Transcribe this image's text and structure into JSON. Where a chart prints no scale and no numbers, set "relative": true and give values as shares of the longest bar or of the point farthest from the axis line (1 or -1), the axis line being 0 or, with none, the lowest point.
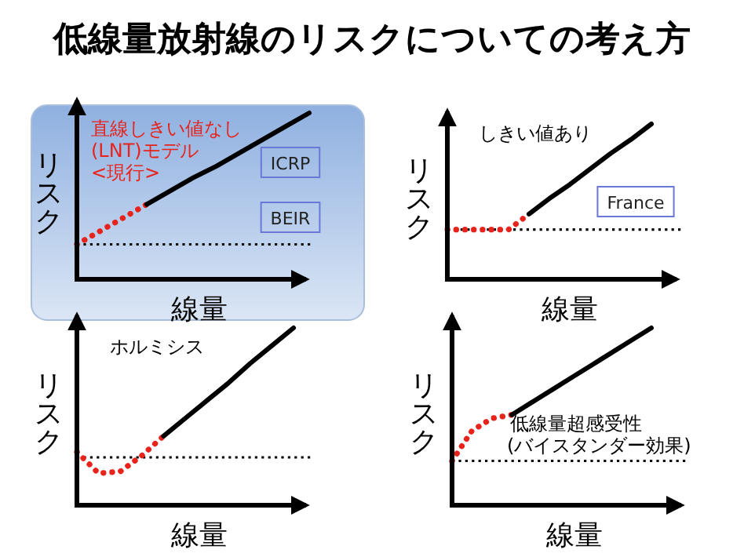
{
  "chart_data": [
    {
      "type": "line",
      "relative": true,
      "title": "低線量放射線のリスクについての考え方",
      "xlabel": "線量",
      "ylabel": "リスク",
      "categories": [
        null,
        null,
        null,
        null,
        null,
        null,
        null,
        null,
        null,
        null,
        null
      ],
      "series": [
        {
          "color": "#e8231c",
          "line_style": "dotted",
          "values": [
            0.21,
            0.29,
            0.37,
            0.45,
            null,
            null,
            null,
            null,
            null,
            null,
            null
          ]
        },
        {
          "color": "#000000",
          "line_style": "solid",
          "values": [
            null,
            null,
            null,
            0.45,
            0.53,
            0.61,
            0.68,
            0.76,
            0.84,
            0.92,
            1
          ]
        }
      ],
      "ref_lines": [
        {
          "axis": "y",
          "value": 0.21,
          "color": "#000000",
          "line_style": "dotted"
        }
      ],
      "annotations": [
        "直線しきい値なし",
        "(LNT)モデル",
        "<現行>",
        "ICRP",
        "BEIR"
      ]
    },
    {
      "type": "line",
      "relative": true,
      "xlabel": "線量",
      "ylabel": "リスク",
      "categories": [
        null,
        null,
        null,
        null,
        null,
        null,
        null,
        null,
        null,
        null,
        null
      ],
      "series": [
        {
          "color": "#e8231c",
          "line_style": "dotted",
          "values": [
            0.32,
            0.32,
            0.32,
            0.32,
            0.42,
            null,
            null,
            null,
            null,
            null,
            null
          ]
        },
        {
          "color": "#000000",
          "line_style": "solid",
          "values": [
            null,
            null,
            null,
            null,
            0.42,
            0.52,
            0.61,
            0.71,
            0.81,
            0.9,
            1
          ]
        }
      ],
      "ref_lines": [
        {
          "axis": "y",
          "value": 0.32,
          "color": "#000000",
          "line_style": "dotted"
        }
      ],
      "annotations": [
        "しきい値あり",
        "France"
      ]
    },
    {
      "type": "line",
      "relative": true,
      "xlabel": "線量",
      "ylabel": "リスク",
      "categories": [
        null,
        null,
        null,
        null,
        null,
        null,
        null,
        null,
        null,
        null,
        null
      ],
      "series": [
        {
          "color": "#e8231c",
          "line_style": "dotted",
          "values": [
            0.3,
            0.18,
            0.19,
            0.28,
            0.39,
            null,
            null,
            null,
            null,
            null,
            null
          ]
        },
        {
          "color": "#000000",
          "line_style": "solid",
          "values": [
            null,
            null,
            null,
            null,
            0.39,
            0.49,
            0.59,
            0.69,
            0.8,
            0.9,
            1
          ]
        }
      ],
      "ref_lines": [
        {
          "axis": "y",
          "value": 0.27,
          "color": "#000000",
          "line_style": "dotted"
        }
      ],
      "annotations": [
        "ホルミシス"
      ]
    },
    {
      "type": "line",
      "relative": true,
      "xlabel": "線量",
      "ylabel": "リスク",
      "categories": [
        null,
        null,
        null,
        null,
        null,
        null,
        null,
        null,
        null,
        null,
        null
      ],
      "series": [
        {
          "color": "#e8231c",
          "line_style": "dotted",
          "values": [
            0.25,
            0.42,
            0.49,
            0.51,
            null,
            null,
            null,
            null,
            null,
            null,
            null
          ]
        },
        {
          "color": "#000000",
          "line_style": "solid",
          "values": [
            null,
            null,
            null,
            0.51,
            0.58,
            0.65,
            0.72,
            0.79,
            0.86,
            0.93,
            1
          ]
        }
      ],
      "ref_lines": [
        {
          "axis": "y",
          "value": 0.25,
          "color": "#000000",
          "line_style": "dotted"
        }
      ],
      "annotations": [
        "低線量超感受性",
        "(バイスタンダー効果)"
      ]
    }
  ]
}
